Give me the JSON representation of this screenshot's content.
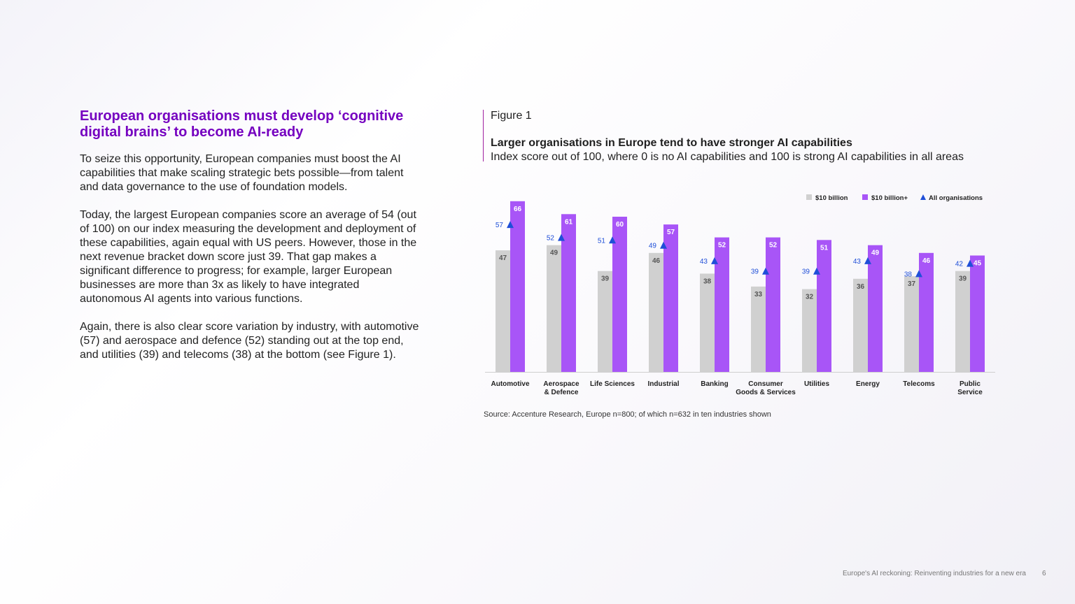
{
  "left": {
    "heading": "European organisations must develop ‘cognitive digital brains’ to become AI-ready",
    "paragraphs": [
      "To seize this opportunity, European companies must boost the AI capabilities that make scaling strategic bets possible—from talent and data governance to the use of foundation models.",
      "Today, the largest European companies score an average of 54 (out of 100) on our index measuring the development and deployment of these capabilities, again equal with US peers. However, those in the next revenue bracket down score just 39. That gap makes a significant difference to progress; for example, larger European businesses are more than 3x as likely to have integrated autonomous AI agents into various functions.",
      "Again, there is also clear score variation by industry, with automotive (57) and aerospace and defence (52) standing out at the top end, and utilities (39) and telecoms (38) at the bottom (see Figure 1)."
    ]
  },
  "figure": {
    "label": "Figure 1",
    "source": "Source: Accenture Research, Europe n=800; of which n=632 in ten industries shown"
  },
  "chart_data": {
    "type": "bar",
    "title": "Larger organisations in Europe tend to have stronger AI capabilities",
    "subtitle": "Index score out of 100, where 0 is no AI capabilities and 100 is strong AI capabilities in all areas",
    "categories": [
      [
        "Automotive"
      ],
      [
        "Aerospace",
        "& Defence"
      ],
      [
        "Life Sciences"
      ],
      [
        "Industrial"
      ],
      [
        "Banking"
      ],
      [
        "Consumer",
        "Goods & Services"
      ],
      [
        "Utilities"
      ],
      [
        "Energy"
      ],
      [
        "Telecoms"
      ],
      [
        "Public",
        "Service"
      ]
    ],
    "series": [
      {
        "name": "$10 billion",
        "type": "bar",
        "color": "#d0d0d0",
        "values": [
          47,
          49,
          39,
          46,
          38,
          33,
          32,
          36,
          37,
          39
        ]
      },
      {
        "name": "$10 billion+",
        "type": "bar",
        "color": "#a855f7",
        "values": [
          66,
          61,
          60,
          57,
          52,
          52,
          51,
          49,
          46,
          45
        ]
      },
      {
        "name": "All organisations",
        "type": "marker-triangle",
        "color": "#1f4fd8",
        "values": [
          57,
          52,
          51,
          49,
          43,
          39,
          39,
          43,
          38,
          42
        ]
      }
    ],
    "ylim": [
      0,
      70
    ],
    "grid": false,
    "legend": "top-right"
  },
  "footer": {
    "text": "Europe's AI reckoning: Reinventing industries for a new era",
    "page": "6"
  }
}
